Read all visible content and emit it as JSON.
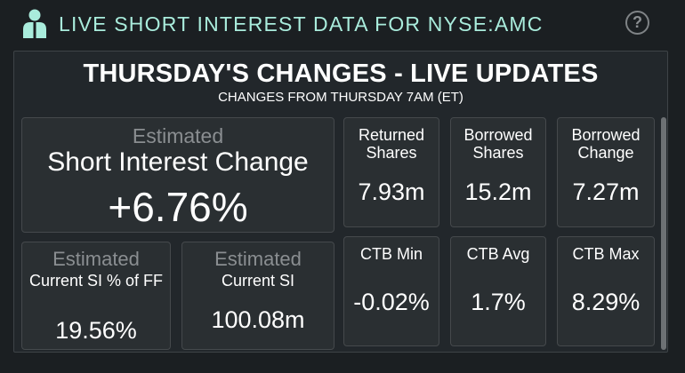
{
  "header": {
    "title": "LIVE SHORT INTEREST DATA FOR NYSE:AMC",
    "help_label": "?"
  },
  "panel": {
    "title": "THURSDAY'S CHANGES - LIVE UPDATES",
    "subtitle": "CHANGES FROM THURSDAY 7AM (ET)"
  },
  "short_interest_change": {
    "estimated_label": "Estimated",
    "label": "Short Interest Change",
    "value": "+6.76%"
  },
  "current_si_ff": {
    "estimated_label": "Estimated",
    "label": "Current SI % of FF",
    "value": "19.56%"
  },
  "current_si": {
    "estimated_label": "Estimated",
    "label": "Current SI",
    "value": "100.08m"
  },
  "stats": [
    {
      "label": "Returned Shares",
      "value": "7.93m"
    },
    {
      "label": "Borrowed Shares",
      "value": "15.2m"
    },
    {
      "label": "Borrowed Change",
      "value": "7.27m"
    },
    {
      "label": "CTB Min",
      "value": "-0.02%"
    },
    {
      "label": "CTB Avg",
      "value": "1.7%"
    },
    {
      "label": "CTB Max",
      "value": "8.29%"
    }
  ],
  "colors": {
    "background": "#1b1f22",
    "panel": "#22272b",
    "card": "#2a2f32",
    "accent": "#a9ecdc",
    "logo": "#a9ecdc"
  }
}
